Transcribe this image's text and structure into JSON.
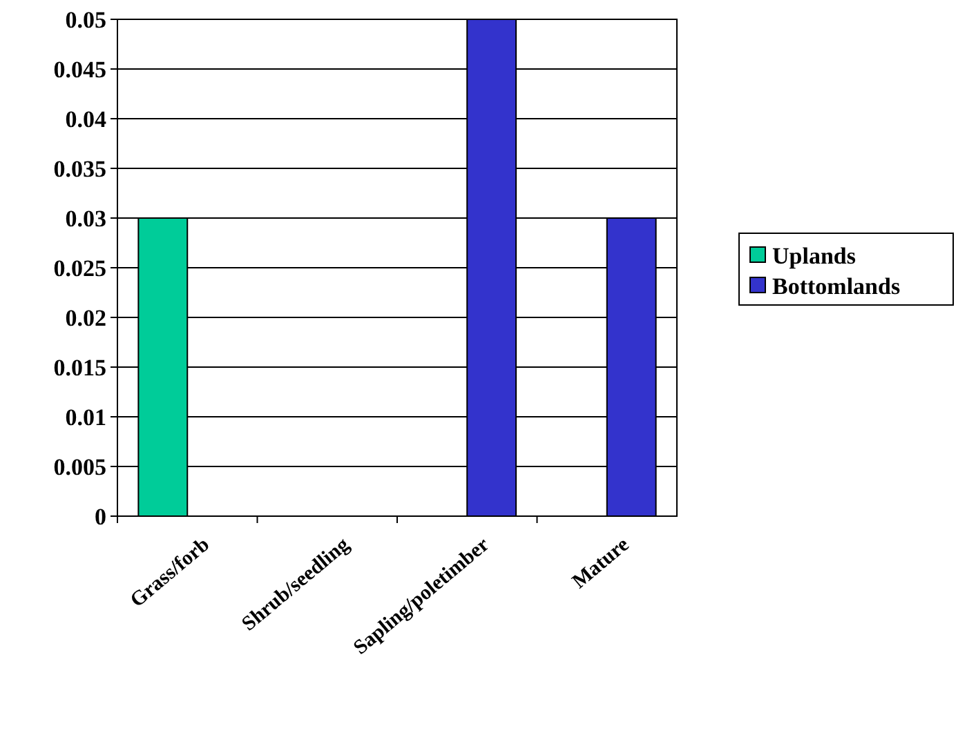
{
  "chart_data": {
    "type": "bar",
    "categories": [
      "Grass/forb",
      "Shrub/seedling",
      "Sapling/poletimber",
      "Mature"
    ],
    "series": [
      {
        "name": "Uplands",
        "color": "#00cc99",
        "values": [
          0.03,
          0,
          0,
          0
        ]
      },
      {
        "name": "Bottomlands",
        "color": "#3333cc",
        "values": [
          0,
          0,
          0.05,
          0.03
        ]
      }
    ],
    "ylim": [
      0,
      0.05
    ],
    "yticks": [
      0,
      0.005,
      0.01,
      0.015,
      0.02,
      0.025,
      0.03,
      0.035,
      0.04,
      0.045,
      0.05
    ],
    "grid": "y",
    "legend": "right"
  }
}
